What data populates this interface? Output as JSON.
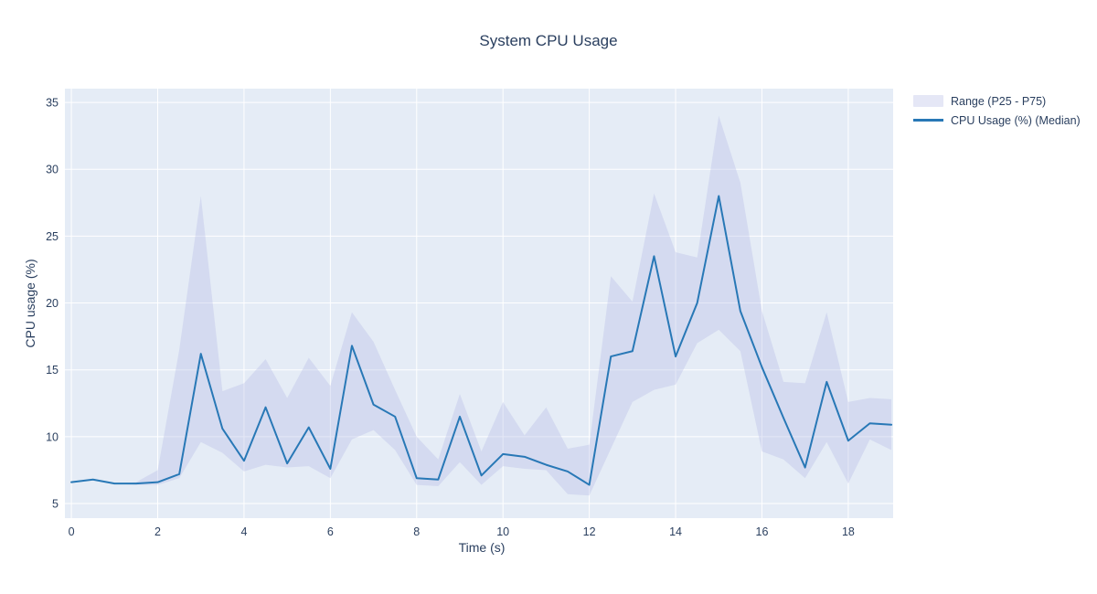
{
  "chart_data": {
    "type": "line",
    "title": "System CPU Usage",
    "xlabel": "Time (s)",
    "ylabel": "CPU usage (%)",
    "x": [
      0,
      0.5,
      1,
      1.5,
      2,
      2.5,
      3,
      3.5,
      4,
      4.5,
      5,
      5.5,
      6,
      6.5,
      7,
      7.5,
      8,
      8.5,
      9,
      9.5,
      10,
      10.5,
      11,
      11.5,
      12,
      12.5,
      13,
      13.5,
      14,
      14.5,
      15,
      15.5,
      16,
      16.5,
      17,
      17.5,
      18,
      18.5,
      19
    ],
    "series": [
      {
        "name": "Range (P25 - P75)",
        "kind": "band",
        "fill": "rgba(180,185,230,0.35)",
        "upper": [
          6.6,
          6.8,
          6.5,
          6.6,
          7.5,
          16.5,
          28.0,
          13.4,
          14.0,
          15.8,
          12.9,
          15.9,
          13.8,
          19.3,
          17.1,
          13.5,
          10.0,
          8.3,
          13.2,
          8.9,
          12.6,
          10.1,
          12.2,
          9.1,
          9.4,
          22.0,
          20.1,
          28.2,
          23.8,
          23.4,
          34.0,
          29.0,
          19.4,
          14.1,
          14.0,
          19.3,
          12.6,
          12.9,
          12.8
        ],
        "lower": [
          6.6,
          6.8,
          6.5,
          6.4,
          6.4,
          6.9,
          9.6,
          8.8,
          7.4,
          7.9,
          7.7,
          7.8,
          6.9,
          9.8,
          10.5,
          9.0,
          6.4,
          6.3,
          8.1,
          6.4,
          7.8,
          7.6,
          7.5,
          5.7,
          5.6,
          9.1,
          12.6,
          13.5,
          13.9,
          17.0,
          18.0,
          16.4,
          8.9,
          8.3,
          6.9,
          9.6,
          6.5,
          9.8,
          9.0
        ]
      },
      {
        "name": "CPU Usage (%) (Median)",
        "kind": "line",
        "color": "#2878b6",
        "values": [
          6.6,
          6.8,
          6.5,
          6.5,
          6.6,
          7.2,
          16.2,
          10.6,
          8.2,
          12.2,
          8.0,
          10.7,
          7.6,
          16.8,
          12.4,
          11.5,
          6.9,
          6.8,
          11.5,
          7.1,
          8.7,
          8.5,
          7.9,
          7.4,
          6.4,
          16.0,
          16.4,
          23.5,
          16.0,
          20.0,
          28.0,
          19.4,
          15.2,
          11.4,
          7.7,
          14.1,
          9.7,
          11.0,
          10.9
        ]
      }
    ],
    "xticks": [
      0,
      2,
      4,
      6,
      8,
      10,
      12,
      14,
      16,
      18
    ],
    "yticks": [
      5,
      10,
      15,
      20,
      25,
      30,
      35
    ],
    "xrange": [
      -0.15,
      19.04
    ],
    "yrange": [
      3.91,
      36.03
    ],
    "grid": true,
    "legend_position": "right",
    "plot_bg": "#e5ecf6",
    "grid_color": "#ffffff",
    "font_color": "#2a3f5f"
  }
}
